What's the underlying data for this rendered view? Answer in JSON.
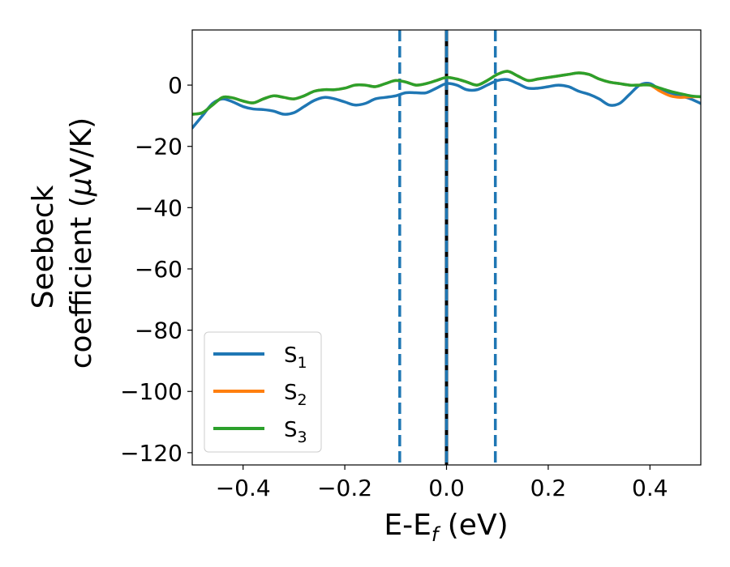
{
  "chart_data": {
    "type": "line",
    "title": "",
    "xlabel": "E-E",
    "xlabel_subscript": "f",
    "xlabel_unit": " (eV)",
    "ylabel_line1": "Seebeck",
    "ylabel_line2_prefix": "coefficient  (",
    "ylabel_line2_mu": "μ",
    "ylabel_line2_suffix": "V/K)",
    "xlim": [
      -0.5,
      0.5
    ],
    "ylim": [
      -124,
      18
    ],
    "xticks": [
      -0.4,
      -0.2,
      0.0,
      0.2,
      0.4
    ],
    "xtick_labels": [
      "−0.4",
      "−0.2",
      "0.0",
      "0.2",
      "0.4"
    ],
    "yticks": [
      0,
      -20,
      -40,
      -60,
      -80,
      -100,
      -120
    ],
    "ytick_labels": [
      "0",
      "−20",
      "−40",
      "−60",
      "−80",
      "−100",
      "−120"
    ],
    "grid": false,
    "legend_position": "lower-left",
    "vlines": [
      {
        "x": -0.092,
        "style": "dashed",
        "color": "#1f77b4"
      },
      {
        "x": 0.0,
        "style": "solid",
        "color": "#000000"
      },
      {
        "x": 0.0,
        "style": "dashed",
        "color": "#1f77b4"
      },
      {
        "x": 0.096,
        "style": "dashed",
        "color": "#1f77b4"
      }
    ],
    "series": [
      {
        "name": "S",
        "name_subscript": "1",
        "color": "#1f77b4",
        "x": [
          -0.5,
          -0.48,
          -0.46,
          -0.44,
          -0.42,
          -0.4,
          -0.38,
          -0.36,
          -0.34,
          -0.32,
          -0.3,
          -0.28,
          -0.26,
          -0.24,
          -0.22,
          -0.2,
          -0.18,
          -0.16,
          -0.14,
          -0.12,
          -0.1,
          -0.08,
          -0.06,
          -0.04,
          -0.02,
          0.0,
          0.02,
          0.04,
          0.06,
          0.08,
          0.1,
          0.12,
          0.14,
          0.16,
          0.18,
          0.2,
          0.22,
          0.24,
          0.26,
          0.28,
          0.3,
          0.32,
          0.34,
          0.36,
          0.38,
          0.4,
          0.42,
          0.44,
          0.46,
          0.48,
          0.5
        ],
        "y": [
          -14,
          -10,
          -6,
          -4.5,
          -5.5,
          -7,
          -7.8,
          -8,
          -8.5,
          -9.5,
          -9,
          -7,
          -5,
          -4,
          -4.5,
          -5.5,
          -6.5,
          -6,
          -4.5,
          -4,
          -3.5,
          -2.5,
          -2.5,
          -2.5,
          -1,
          0.5,
          0,
          -1.5,
          -1.5,
          0,
          1.5,
          1.8,
          0.5,
          -1,
          -1,
          -0.5,
          0,
          -0.5,
          -2,
          -3,
          -4.5,
          -6.5,
          -6,
          -3,
          0,
          0.5,
          -1.5,
          -2.5,
          -3.5,
          -4.5,
          -6
        ]
      },
      {
        "name": "S",
        "name_subscript": "2",
        "color": "#ff7f0e",
        "x": [
          -0.5,
          -0.48,
          -0.46,
          -0.44,
          -0.42,
          -0.4,
          -0.38,
          -0.36,
          -0.34,
          -0.32,
          -0.3,
          -0.28,
          -0.26,
          -0.24,
          -0.22,
          -0.2,
          -0.18,
          -0.16,
          -0.14,
          -0.12,
          -0.1,
          -0.08,
          -0.06,
          -0.04,
          -0.02,
          0.0,
          0.02,
          0.04,
          0.06,
          0.08,
          0.1,
          0.12,
          0.14,
          0.16,
          0.18,
          0.2,
          0.22,
          0.24,
          0.26,
          0.28,
          0.3,
          0.32,
          0.34,
          0.36,
          0.38,
          0.4,
          0.42,
          0.44,
          0.46,
          0.48,
          0.5
        ],
        "y": [
          -9.5,
          -9,
          -6.5,
          -4,
          -4.2,
          -5.2,
          -5.8,
          -4.5,
          -3.5,
          -4,
          -4.5,
          -3.5,
          -2,
          -1.5,
          -1.5,
          -1,
          0,
          0,
          -0.5,
          0.5,
          1.5,
          1,
          0,
          0.5,
          1.5,
          2.5,
          2,
          1,
          0,
          1.5,
          3.5,
          4.5,
          3,
          1.5,
          2,
          2.5,
          3,
          3.5,
          4,
          3.5,
          2,
          1,
          0.5,
          0,
          0,
          0,
          -2,
          -3.5,
          -4,
          -3.8,
          -3.8
        ]
      },
      {
        "name": "S",
        "name_subscript": "3",
        "color": "#2ca02c",
        "x": [
          -0.5,
          -0.48,
          -0.46,
          -0.44,
          -0.42,
          -0.4,
          -0.38,
          -0.36,
          -0.34,
          -0.32,
          -0.3,
          -0.28,
          -0.26,
          -0.24,
          -0.22,
          -0.2,
          -0.18,
          -0.16,
          -0.14,
          -0.12,
          -0.1,
          -0.08,
          -0.06,
          -0.04,
          -0.02,
          0.0,
          0.02,
          0.04,
          0.06,
          0.08,
          0.1,
          0.12,
          0.14,
          0.16,
          0.18,
          0.2,
          0.22,
          0.24,
          0.26,
          0.28,
          0.3,
          0.32,
          0.34,
          0.36,
          0.38,
          0.4,
          0.42,
          0.44,
          0.46,
          0.48,
          0.5
        ],
        "y": [
          -9.5,
          -9,
          -6.5,
          -4,
          -4.2,
          -5.2,
          -5.8,
          -4.5,
          -3.5,
          -4,
          -4.5,
          -3.5,
          -2,
          -1.5,
          -1.5,
          -1,
          0,
          0,
          -0.5,
          0.5,
          1.5,
          1,
          0,
          0.5,
          1.5,
          2.5,
          2,
          1,
          0,
          1.5,
          3.5,
          4.5,
          3,
          1.5,
          2,
          2.5,
          3,
          3.5,
          4,
          3.5,
          2,
          1,
          0.5,
          0,
          0,
          0,
          -1,
          -2,
          -2.8,
          -3.5,
          -3.8
        ]
      }
    ]
  }
}
